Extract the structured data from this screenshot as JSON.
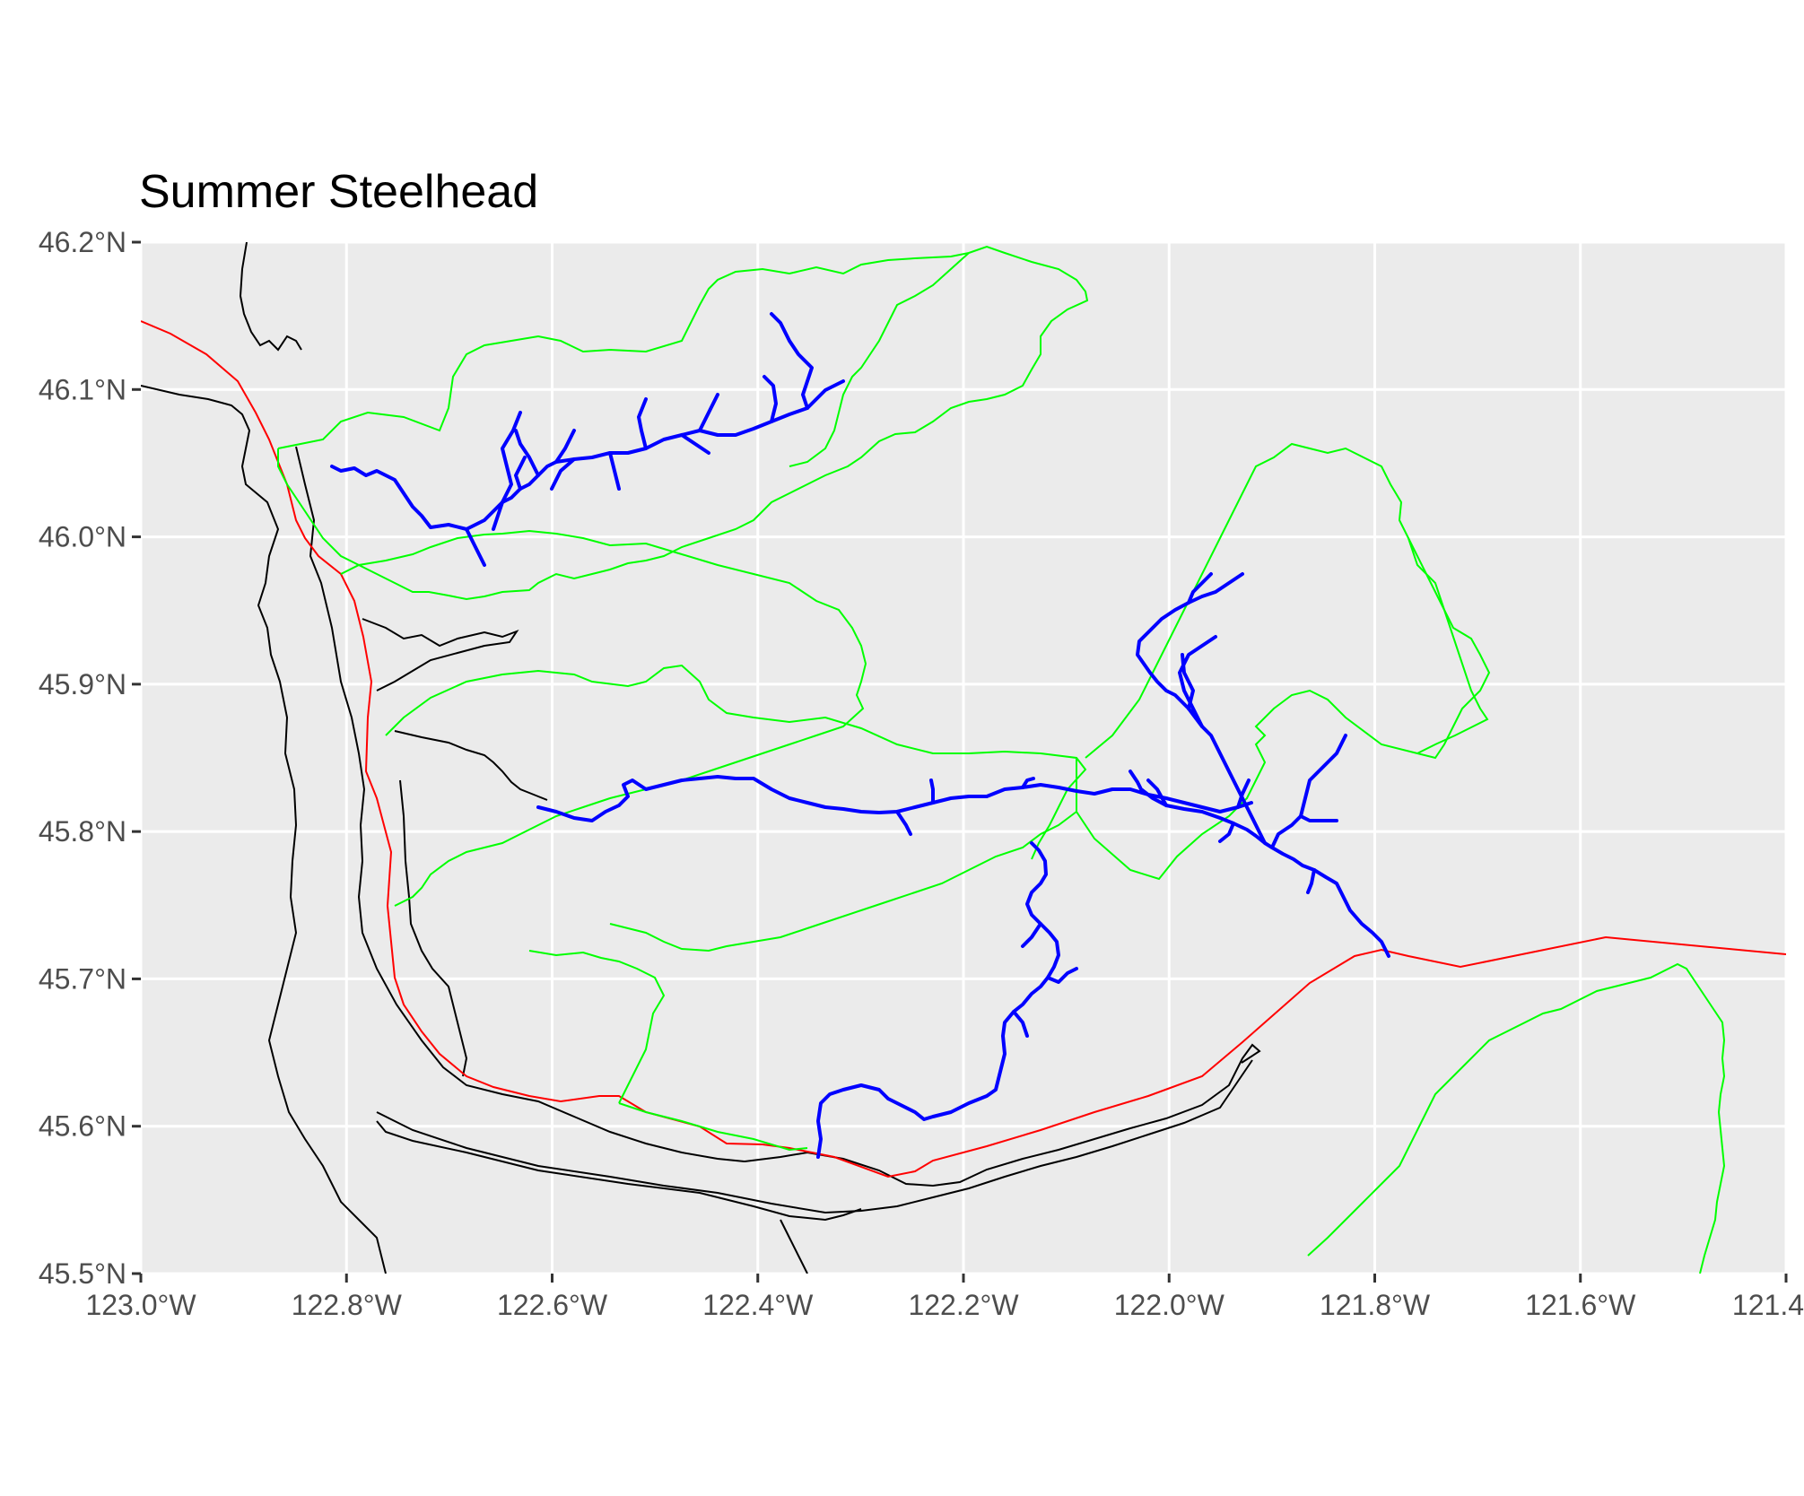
{
  "title": "Summer Steelhead",
  "map": {
    "panel_background": "#ebebeb",
    "gridline_color": "#ffffff",
    "lat_ticks": [
      {
        "value": 46.2,
        "label": "46.2°N"
      },
      {
        "value": 46.1,
        "label": "46.1°N"
      },
      {
        "value": 46.0,
        "label": "46.0°N"
      },
      {
        "value": 45.9,
        "label": "45.9°N"
      },
      {
        "value": 45.8,
        "label": "45.8°N"
      },
      {
        "value": 45.7,
        "label": "45.7°N"
      },
      {
        "value": 45.6,
        "label": "45.6°N"
      },
      {
        "value": 45.5,
        "label": "45.5°N"
      }
    ],
    "lon_ticks": [
      {
        "value": -123.0,
        "label": "123.0°W"
      },
      {
        "value": -122.8,
        "label": "122.8°W"
      },
      {
        "value": -122.6,
        "label": "122.6°W"
      },
      {
        "value": -122.4,
        "label": "122.4°W"
      },
      {
        "value": -122.2,
        "label": "122.2°W"
      },
      {
        "value": -122.0,
        "label": "122.0°W"
      },
      {
        "value": -121.8,
        "label": "121.8°W"
      },
      {
        "value": -121.6,
        "label": "121.6°W"
      },
      {
        "value": -121.4,
        "label": "121.4"
      }
    ],
    "layer_colors": {
      "shoreline": "#000000",
      "state_boundary": "#ff0000",
      "watershed_boundary": "#00ff00",
      "steelhead_streams": "#0000ff"
    }
  }
}
